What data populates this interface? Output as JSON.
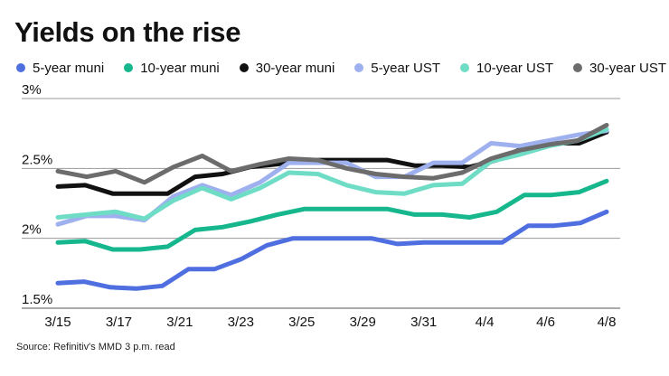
{
  "chart_data": {
    "type": "line",
    "title": "Yields on the rise",
    "source": "Source: Refinitiv's MMD 3 p.m. read",
    "xlabel": "",
    "ylabel": "",
    "x_ticks": [
      "3/15",
      "3/17",
      "3/21",
      "3/23",
      "3/25",
      "3/29",
      "3/31",
      "4/4",
      "4/6",
      "4/8"
    ],
    "y_ticks": [
      "3%",
      "2.5%",
      "2%",
      "1.5%"
    ],
    "ylim": [
      1.5,
      3.0
    ],
    "grid": true,
    "legend_position": "top",
    "series": [
      {
        "name": "5-year muni",
        "color": "#4f6ee0",
        "values": [
          1.68,
          1.69,
          1.65,
          1.64,
          1.66,
          1.78,
          1.78,
          1.85,
          1.95,
          2.0,
          2.0,
          2.0,
          2.0,
          1.96,
          1.97,
          1.97,
          1.97,
          1.97,
          2.09,
          2.09,
          2.11,
          2.19
        ]
      },
      {
        "name": "10-year muni",
        "color": "#16b78c",
        "values": [
          1.97,
          1.98,
          1.92,
          1.92,
          1.94,
          2.06,
          2.08,
          2.12,
          2.17,
          2.21,
          2.21,
          2.21,
          2.21,
          2.17,
          2.17,
          2.15,
          2.19,
          2.31,
          2.31,
          2.33,
          2.41
        ]
      },
      {
        "name": "30-year muni",
        "color": "#111111",
        "values": [
          2.37,
          2.38,
          2.32,
          2.32,
          2.32,
          2.44,
          2.46,
          2.51,
          2.53,
          2.56,
          2.56,
          2.56,
          2.56,
          2.52,
          2.52,
          2.51,
          2.56,
          2.65,
          2.68,
          2.68,
          2.76
        ]
      },
      {
        "name": "5-year UST",
        "color": "#9fb0ef",
        "values": [
          2.1,
          2.16,
          2.16,
          2.13,
          2.3,
          2.38,
          2.31,
          2.4,
          2.54,
          2.54,
          2.54,
          2.44,
          2.44,
          2.54,
          2.54,
          2.68,
          2.66,
          2.7,
          2.74,
          2.77
        ]
      },
      {
        "name": "10-year UST",
        "color": "#6fdcc6",
        "values": [
          2.15,
          2.17,
          2.19,
          2.14,
          2.27,
          2.36,
          2.28,
          2.36,
          2.47,
          2.46,
          2.38,
          2.33,
          2.32,
          2.38,
          2.39,
          2.55,
          2.6,
          2.66,
          2.7,
          2.78
        ]
      },
      {
        "name": "30-year UST",
        "color": "#6c6c6c",
        "values": [
          2.48,
          2.44,
          2.48,
          2.4,
          2.51,
          2.59,
          2.48,
          2.53,
          2.57,
          2.56,
          2.5,
          2.46,
          2.44,
          2.43,
          2.47,
          2.57,
          2.63,
          2.67,
          2.7,
          2.81
        ]
      }
    ]
  }
}
